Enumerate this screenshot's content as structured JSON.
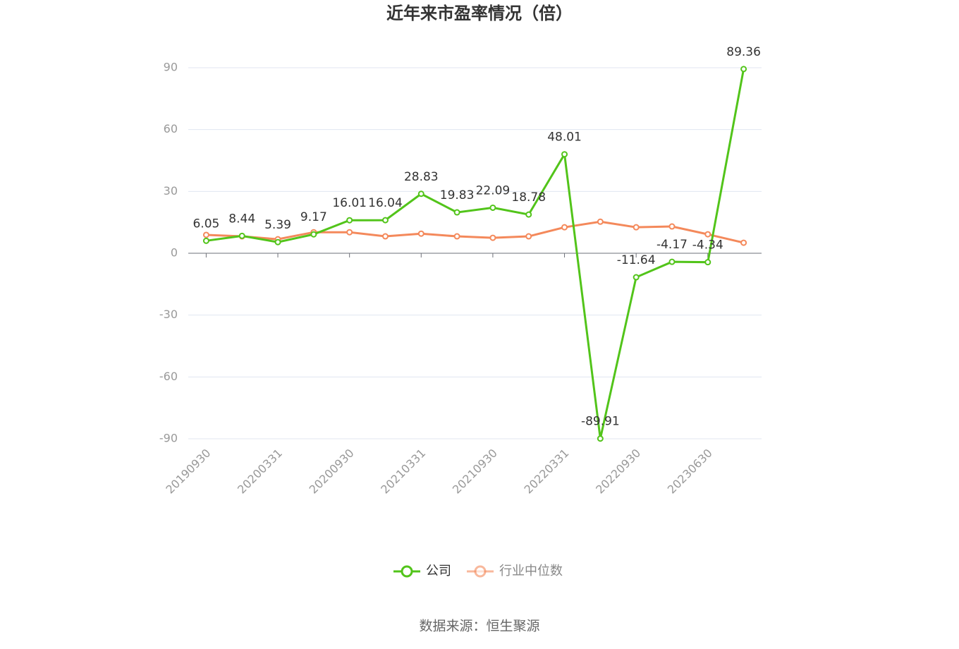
{
  "chart_data": {
    "type": "line",
    "title": "近年来市盈率情况（倍）",
    "categories": [
      "20190930",
      null,
      "20200331",
      null,
      "20200930",
      null,
      "20210331",
      null,
      "20210930",
      null,
      "20220331",
      null,
      "20220930",
      null,
      "20230630",
      null
    ],
    "series": [
      {
        "name": "公司",
        "color": "#52c41a",
        "values": [
          6.05,
          8.44,
          5.39,
          9.17,
          16.01,
          16.04,
          28.83,
          19.83,
          22.09,
          18.78,
          48.01,
          -89.91,
          -11.64,
          -4.17,
          -4.34,
          89.36
        ]
      },
      {
        "name": "行业中位数",
        "color": "#f4895b",
        "values": [
          8.9,
          8.2,
          6.8,
          10.2,
          10.2,
          8.2,
          9.5,
          8.2,
          7.5,
          8.2,
          12.6,
          15.3,
          12.6,
          13.0,
          9.2,
          5.1
        ]
      }
    ],
    "ylim": [
      -90,
      90
    ],
    "yticks": [
      -90,
      -60,
      -30,
      0,
      30,
      60,
      90
    ],
    "grid": true,
    "source": "数据来源：恒生聚源"
  }
}
